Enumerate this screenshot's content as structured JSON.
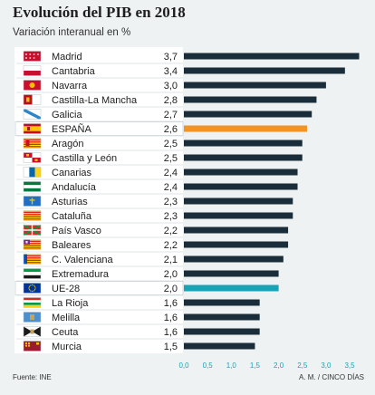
{
  "chart_data": {
    "type": "bar",
    "orientation": "horizontal",
    "title": "Evolución del PIB en 2018",
    "subtitle": "Variación interanual en %",
    "categories": [
      "Madrid",
      "Cantabria",
      "Navarra",
      "Castilla-La Mancha",
      "Galicia",
      "ESPAÑA",
      "Aragón",
      "Castilla y León",
      "Canarias",
      "Andalucía",
      "Asturias",
      "Cataluña",
      "País Vasco",
      "Baleares",
      "C. Valenciana",
      "Extremadura",
      "UE-28",
      "La Rioja",
      "Melilla",
      "Ceuta",
      "Murcia"
    ],
    "values": [
      3.7,
      3.4,
      3.0,
      2.8,
      2.7,
      2.6,
      2.5,
      2.5,
      2.4,
      2.4,
      2.3,
      2.3,
      2.2,
      2.2,
      2.1,
      2.0,
      2.0,
      1.6,
      1.6,
      1.6,
      1.5
    ],
    "value_labels": [
      "3,7",
      "3,4",
      "3,0",
      "2,8",
      "2,7",
      "2,6",
      "2,5",
      "2,5",
      "2,4",
      "2,4",
      "2,3",
      "2,3",
      "2,2",
      "2,2",
      "2,1",
      "2,0",
      "2,0",
      "1,6",
      "1,6",
      "1,6",
      "1,5"
    ],
    "highlight": {
      "ESPAÑA": "#f39325",
      "UE-28": "#1aa3b5"
    },
    "bar_color": "#1a2d3a",
    "xlim": [
      0,
      3.7
    ],
    "xticks": [
      0,
      0.5,
      1.0,
      1.5,
      2.0,
      2.5,
      3.0,
      3.5
    ],
    "xtick_labels": [
      "0,0",
      "0,5",
      "1,0",
      "1,5",
      "2,0",
      "2,5",
      "3,0",
      "3,5"
    ],
    "xaxis_label_color": "#1aa3b5",
    "grid": false,
    "flag_icons": [
      "madrid-flag-icon",
      "cantabria-flag-icon",
      "navarra-flag-icon",
      "castilla-la-mancha-flag-icon",
      "galicia-flag-icon",
      "espana-flag-icon",
      "aragon-flag-icon",
      "castilla-y-leon-flag-icon",
      "canarias-flag-icon",
      "andalucia-flag-icon",
      "asturias-flag-icon",
      "cataluna-flag-icon",
      "pais-vasco-flag-icon",
      "baleares-flag-icon",
      "c-valenciana-flag-icon",
      "extremadura-flag-icon",
      "eu-flag-icon",
      "la-rioja-flag-icon",
      "melilla-flag-icon",
      "ceuta-flag-icon",
      "murcia-flag-icon"
    ]
  },
  "footer": {
    "source": "Fuente: INE",
    "credit": "A. M. / CINCO DÍAS"
  }
}
